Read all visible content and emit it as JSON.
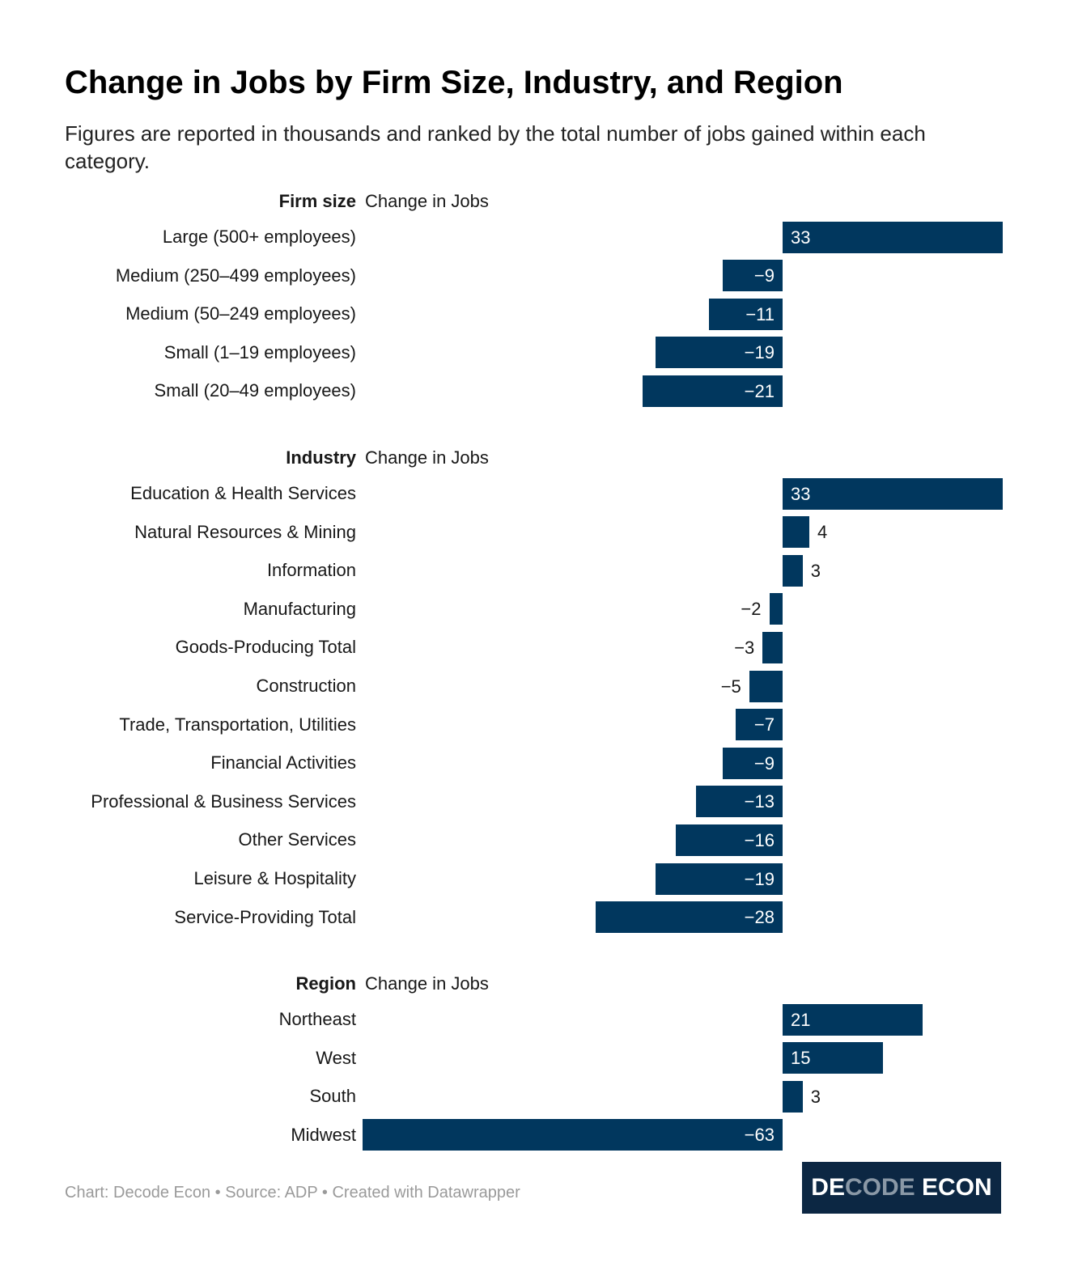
{
  "title": "Change in Jobs by Firm Size, Industry, and Region",
  "subtitle": "Figures are reported in thousands and ranked by the total number of jobs gained within each category.",
  "footer": "Chart: Decode Econ • Source: ADP • Created with Datawrapper",
  "logo": {
    "part1": "DE",
    "part2": "CODE",
    "part3": " ECON"
  },
  "colors": {
    "bar": "#01375e"
  },
  "chart_data": {
    "type": "bar",
    "orientation": "horizontal",
    "unit": "thousands",
    "column_header": "Change in Jobs",
    "groups": [
      {
        "name": "Firm size",
        "categories": [
          "Large (500+ employees)",
          "Medium (250–499 employees)",
          "Medium (50–249 employees)",
          "Small (1–19 employees)",
          "Small (20–49 employees)"
        ],
        "values": [
          33,
          -9,
          -11,
          -19,
          -21
        ],
        "labels": [
          "33",
          "−9",
          "−11",
          "−19",
          "−21"
        ]
      },
      {
        "name": "Industry",
        "categories": [
          "Education & Health Services",
          "Natural Resources & Mining",
          "Information",
          "Manufacturing",
          "Goods-Producing Total",
          "Construction",
          "Trade, Transportation, Utilities",
          "Financial Activities",
          "Professional & Business Services",
          "Other Services",
          "Leisure & Hospitality",
          "Service-Providing Total"
        ],
        "values": [
          33,
          4,
          3,
          -2,
          -3,
          -5,
          -7,
          -9,
          -13,
          -16,
          -19,
          -28
        ],
        "labels": [
          "33",
          "4",
          "3",
          "−2",
          "−3",
          "−5",
          "−7",
          "−9",
          "−13",
          "−16",
          "−19",
          "−28"
        ]
      },
      {
        "name": "Region",
        "categories": [
          "Northeast",
          "West",
          "South",
          "Midwest"
        ],
        "values": [
          21,
          15,
          3,
          -63
        ],
        "labels": [
          "21",
          "15",
          "3",
          "−63"
        ]
      }
    ],
    "xlim": [
      -63,
      33
    ]
  }
}
